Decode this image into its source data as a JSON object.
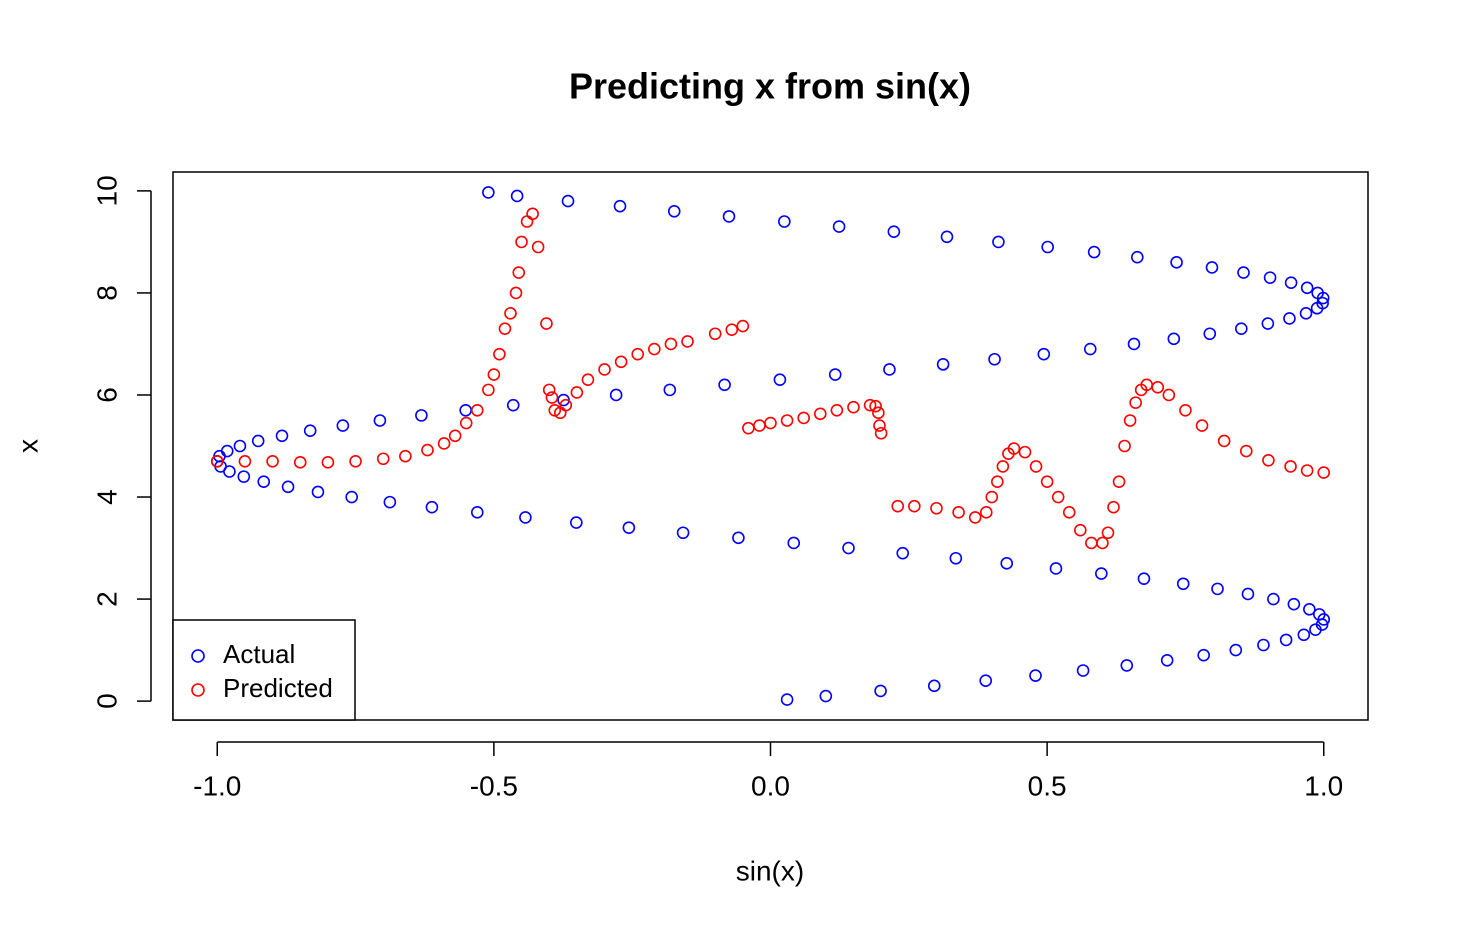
{
  "chart_data": {
    "type": "scatter",
    "title": "Predicting x from sin(x)",
    "x_label": "sin(x)",
    "y_label": "x",
    "xlim": [
      -1.08,
      1.08
    ],
    "ylim": [
      -0.37,
      10.37
    ],
    "xticks": [
      {
        "value": -1,
        "label": "-1.0"
      },
      {
        "value": -0.5,
        "label": "-0.5"
      },
      {
        "value": 0,
        "label": "0.0"
      },
      {
        "value": 0.5,
        "label": "0.5"
      },
      {
        "value": 1,
        "label": "1.0"
      }
    ],
    "yticks": [
      0,
      2,
      4,
      6,
      8,
      10
    ],
    "legend_position": "bottom-left",
    "series": [
      {
        "name": "Actual",
        "color": "#0000ff",
        "x": [
          0.03,
          0.1,
          0.199,
          0.296,
          0.389,
          0.479,
          0.565,
          0.644,
          0.717,
          0.783,
          0.841,
          0.891,
          0.932,
          0.964,
          0.985,
          0.997,
          1.0,
          0.992,
          0.974,
          0.946,
          0.909,
          0.863,
          0.808,
          0.746,
          0.675,
          0.598,
          0.516,
          0.427,
          0.335,
          0.239,
          0.141,
          0.042,
          -0.058,
          -0.158,
          -0.256,
          -0.351,
          -0.443,
          -0.53,
          -0.612,
          -0.688,
          -0.757,
          -0.818,
          -0.872,
          -0.916,
          -0.952,
          -0.978,
          -0.994,
          -1.0,
          -0.996,
          -0.982,
          -0.959,
          -0.926,
          -0.883,
          -0.832,
          -0.773,
          -0.706,
          -0.631,
          -0.551,
          -0.465,
          -0.374,
          -0.279,
          -0.182,
          -0.083,
          0.017,
          0.117,
          0.215,
          0.312,
          0.405,
          0.494,
          0.578,
          0.657,
          0.729,
          0.794,
          0.851,
          0.899,
          0.938,
          0.968,
          0.988,
          0.998,
          0.999,
          0.989,
          0.97,
          0.941,
          0.903,
          0.855,
          0.798,
          0.734,
          0.663,
          0.585,
          0.501,
          0.412,
          0.319,
          0.223,
          0.124,
          0.025,
          -0.075,
          -0.174,
          -0.272,
          -0.366,
          -0.458,
          -0.51
        ],
        "y": [
          0.03,
          0.1,
          0.2,
          0.3,
          0.4,
          0.5,
          0.6,
          0.7,
          0.8,
          0.9,
          1.0,
          1.1,
          1.2,
          1.3,
          1.4,
          1.5,
          1.6,
          1.7,
          1.8,
          1.9,
          2.0,
          2.1,
          2.2,
          2.3,
          2.4,
          2.5,
          2.6,
          2.7,
          2.8,
          2.9,
          3.0,
          3.1,
          3.2,
          3.3,
          3.4,
          3.5,
          3.6,
          3.7,
          3.8,
          3.9,
          4.0,
          4.1,
          4.2,
          4.3,
          4.4,
          4.5,
          4.6,
          4.7,
          4.8,
          4.9,
          5.0,
          5.1,
          5.2,
          5.3,
          5.4,
          5.5,
          5.6,
          5.7,
          5.8,
          5.9,
          6.0,
          6.1,
          6.2,
          6.3,
          6.4,
          6.5,
          6.6,
          6.7,
          6.8,
          6.9,
          7.0,
          7.1,
          7.2,
          7.3,
          7.4,
          7.5,
          7.6,
          7.7,
          7.8,
          7.9,
          8.0,
          8.1,
          8.2,
          8.3,
          8.4,
          8.5,
          8.6,
          8.7,
          8.8,
          8.9,
          9.0,
          9.1,
          9.2,
          9.3,
          9.4,
          9.5,
          9.6,
          9.7,
          9.8,
          9.9,
          9.97
        ]
      },
      {
        "name": "Predicted",
        "color": "#ff0000",
        "x": [
          -1.0,
          -0.95,
          -0.9,
          -0.85,
          -0.8,
          -0.75,
          -0.7,
          -0.66,
          -0.62,
          -0.59,
          -0.57,
          -0.55,
          -0.53,
          -0.51,
          -0.5,
          -0.49,
          -0.48,
          -0.47,
          -0.46,
          -0.455,
          -0.45,
          -0.44,
          -0.43,
          -0.42,
          -0.405,
          -0.4,
          -0.395,
          -0.39,
          -0.38,
          -0.37,
          -0.35,
          -0.33,
          -0.3,
          -0.27,
          -0.24,
          -0.21,
          -0.18,
          -0.15,
          -0.1,
          -0.07,
          -0.05,
          -0.04,
          -0.02,
          0.0,
          0.03,
          0.06,
          0.09,
          0.12,
          0.15,
          0.18,
          0.19,
          0.195,
          0.197,
          0.2,
          0.23,
          0.26,
          0.3,
          0.34,
          0.37,
          0.39,
          0.4,
          0.41,
          0.42,
          0.43,
          0.44,
          0.46,
          0.48,
          0.5,
          0.52,
          0.54,
          0.56,
          0.58,
          0.6,
          0.61,
          0.62,
          0.63,
          0.64,
          0.65,
          0.66,
          0.67,
          0.68,
          0.7,
          0.72,
          0.75,
          0.78,
          0.82,
          0.86,
          0.9,
          0.94,
          0.97,
          1.0
        ],
        "y": [
          4.7,
          4.7,
          4.7,
          4.68,
          4.68,
          4.7,
          4.75,
          4.8,
          4.92,
          5.05,
          5.2,
          5.45,
          5.7,
          6.1,
          6.4,
          6.8,
          7.3,
          7.6,
          8.0,
          8.4,
          9.0,
          9.4,
          9.55,
          8.9,
          7.4,
          6.1,
          5.95,
          5.7,
          5.65,
          5.8,
          6.05,
          6.3,
          6.5,
          6.65,
          6.8,
          6.9,
          7.0,
          7.05,
          7.2,
          7.28,
          7.35,
          5.35,
          5.4,
          5.45,
          5.5,
          5.55,
          5.63,
          5.7,
          5.76,
          5.8,
          5.78,
          5.65,
          5.4,
          5.25,
          3.82,
          3.82,
          3.78,
          3.7,
          3.6,
          3.7,
          4.0,
          4.3,
          4.6,
          4.85,
          4.95,
          4.88,
          4.6,
          4.3,
          4.0,
          3.7,
          3.35,
          3.1,
          3.1,
          3.3,
          3.8,
          4.3,
          5.0,
          5.5,
          5.85,
          6.1,
          6.2,
          6.15,
          6.0,
          5.7,
          5.4,
          5.1,
          4.9,
          4.72,
          4.6,
          4.52,
          4.48
        ]
      }
    ]
  }
}
